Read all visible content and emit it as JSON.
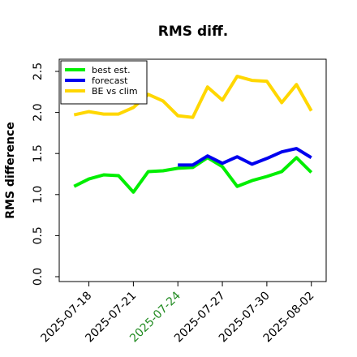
{
  "chart_data": {
    "type": "line",
    "title": "RMS diff.",
    "xlabel": "",
    "ylabel": "RMS difference",
    "ylim": [
      0.0,
      2.5
    ],
    "yticks": [
      0.0,
      0.5,
      1.0,
      1.5,
      2.0,
      2.5
    ],
    "ytick_labels": [
      "0.0",
      "0.5",
      "1.0",
      "1.5",
      "2.0",
      "2.5"
    ],
    "xlim": [
      "2025-07-16",
      "2025-08-03"
    ],
    "xticks": [
      {
        "date": "2025-07-18",
        "label": "2025-07-18",
        "color": "#000000"
      },
      {
        "date": "2025-07-21",
        "label": "2025-07-21",
        "color": "#000000"
      },
      {
        "date": "2025-07-24",
        "label": "2025-07-24",
        "color": "#228b22"
      },
      {
        "date": "2025-07-27",
        "label": "2025-07-27",
        "color": "#000000"
      },
      {
        "date": "2025-07-30",
        "label": "2025-07-30",
        "color": "#000000"
      },
      {
        "date": "2025-08-02",
        "label": "2025-08-02",
        "color": "#000000"
      }
    ],
    "grid": false,
    "legend_position": "top-left",
    "series": [
      {
        "name": "best est.",
        "color": "#00ee00",
        "x": [
          "2025-07-17",
          "2025-07-18",
          "2025-07-19",
          "2025-07-20",
          "2025-07-21",
          "2025-07-22",
          "2025-07-23",
          "2025-07-24",
          "2025-07-25",
          "2025-07-26",
          "2025-07-27",
          "2025-07-28",
          "2025-07-29",
          "2025-07-30",
          "2025-07-31",
          "2025-08-01",
          "2025-08-02"
        ],
        "y": [
          1.1,
          1.19,
          1.24,
          1.23,
          1.03,
          1.28,
          1.29,
          1.32,
          1.33,
          1.45,
          1.34,
          1.1,
          1.17,
          1.22,
          1.28,
          1.45,
          1.27
        ]
      },
      {
        "name": "forecast",
        "color": "#0000ee",
        "x": [
          "2025-07-24",
          "2025-07-25",
          "2025-07-26",
          "2025-07-27",
          "2025-07-28",
          "2025-07-29",
          "2025-07-30",
          "2025-07-31",
          "2025-08-01",
          "2025-08-02"
        ],
        "y": [
          1.36,
          1.36,
          1.47,
          1.38,
          1.46,
          1.37,
          1.44,
          1.52,
          1.56,
          1.45
        ]
      },
      {
        "name": "BE vs clim",
        "color": "#ffd700",
        "x": [
          "2025-07-17",
          "2025-07-18",
          "2025-07-19",
          "2025-07-20",
          "2025-07-21",
          "2025-07-22",
          "2025-07-23",
          "2025-07-24",
          "2025-07-25",
          "2025-07-26",
          "2025-07-27",
          "2025-07-28",
          "2025-07-29",
          "2025-07-30",
          "2025-07-31",
          "2025-08-01",
          "2025-08-02"
        ],
        "y": [
          1.97,
          2.01,
          1.98,
          1.98,
          2.06,
          2.22,
          2.14,
          1.96,
          1.94,
          2.31,
          2.15,
          2.44,
          2.39,
          2.38,
          2.12,
          2.34,
          2.02
        ]
      }
    ]
  }
}
